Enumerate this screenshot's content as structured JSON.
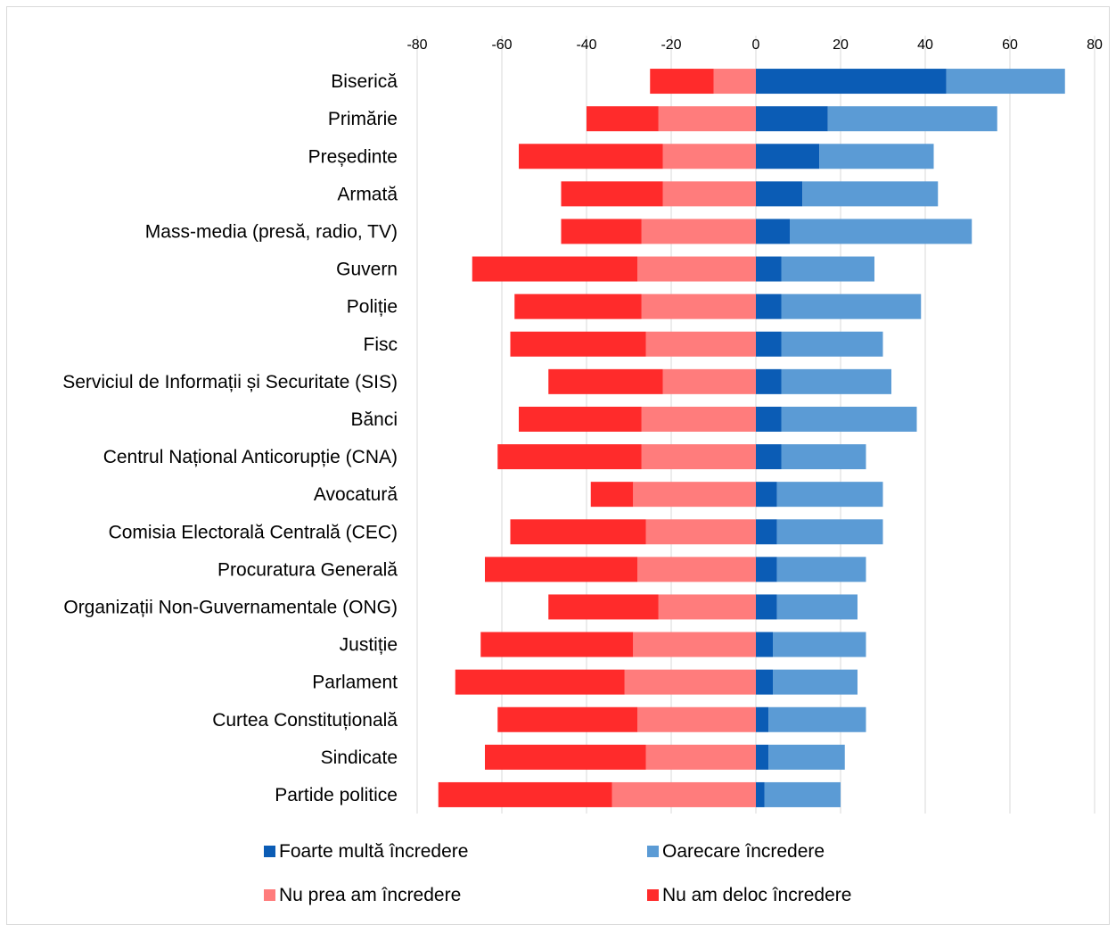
{
  "chart_data": {
    "type": "bar",
    "orientation": "horizontal",
    "stacked": "diverging",
    "xlim": [
      -80,
      80
    ],
    "x_ticks": [
      "-80",
      "-60",
      "-40",
      "-20",
      "0",
      "20",
      "40",
      "60",
      "80"
    ],
    "grid": true,
    "legend_position": "bottom",
    "categories": [
      "Biserică",
      "Primărie",
      "Președinte",
      "Armată",
      "Mass-media (presă, radio, TV)",
      "Guvern",
      "Poliție",
      "Fisc",
      "Serviciul de Informații și Securitate (SIS)",
      "Bănci",
      "Centrul Național Anticorupție (CNA)",
      "Avocatură",
      "Comisia Electorală Centrală (CEC)",
      "Procuratura Generală",
      "Organizații Non-Guvernamentale (ONG)",
      "Justiție",
      "Parlament",
      "Curtea Constituțională",
      "Sindicate",
      "Partide politice"
    ],
    "series": [
      {
        "name": "Foarte multă încredere",
        "color": "#0b5cb5",
        "side": "positive",
        "values": [
          45,
          17,
          15,
          11,
          8,
          6,
          6,
          6,
          6,
          6,
          6,
          5,
          5,
          5,
          5,
          4,
          4,
          3,
          3,
          2
        ]
      },
      {
        "name": "Oarecare încredere",
        "color": "#5b9bd5",
        "side": "positive",
        "values": [
          28,
          40,
          27,
          32,
          43,
          22,
          33,
          24,
          26,
          32,
          20,
          25,
          25,
          21,
          19,
          22,
          20,
          23,
          18,
          18
        ]
      },
      {
        "name": "Nu prea am încredere",
        "color": "#ff7c7c",
        "side": "negative",
        "values": [
          -10,
          -23,
          -22,
          -22,
          -27,
          -28,
          -27,
          -26,
          -22,
          -27,
          -27,
          -29,
          -26,
          -28,
          -23,
          -29,
          -31,
          -28,
          -26,
          -34
        ]
      },
      {
        "name": "Nu am deloc încredere",
        "color": "#ff2b2b",
        "side": "negative",
        "values": [
          -15,
          -17,
          -34,
          -24,
          -19,
          -39,
          -30,
          -32,
          -27,
          -29,
          -34,
          -10,
          -32,
          -36,
          -26,
          -36,
          -40,
          -33,
          -38,
          -41
        ]
      }
    ],
    "legend_order": [
      "Foarte multă încredere",
      "Oarecare încredere",
      "Nu prea am încredere",
      "Nu am deloc încredere"
    ]
  }
}
